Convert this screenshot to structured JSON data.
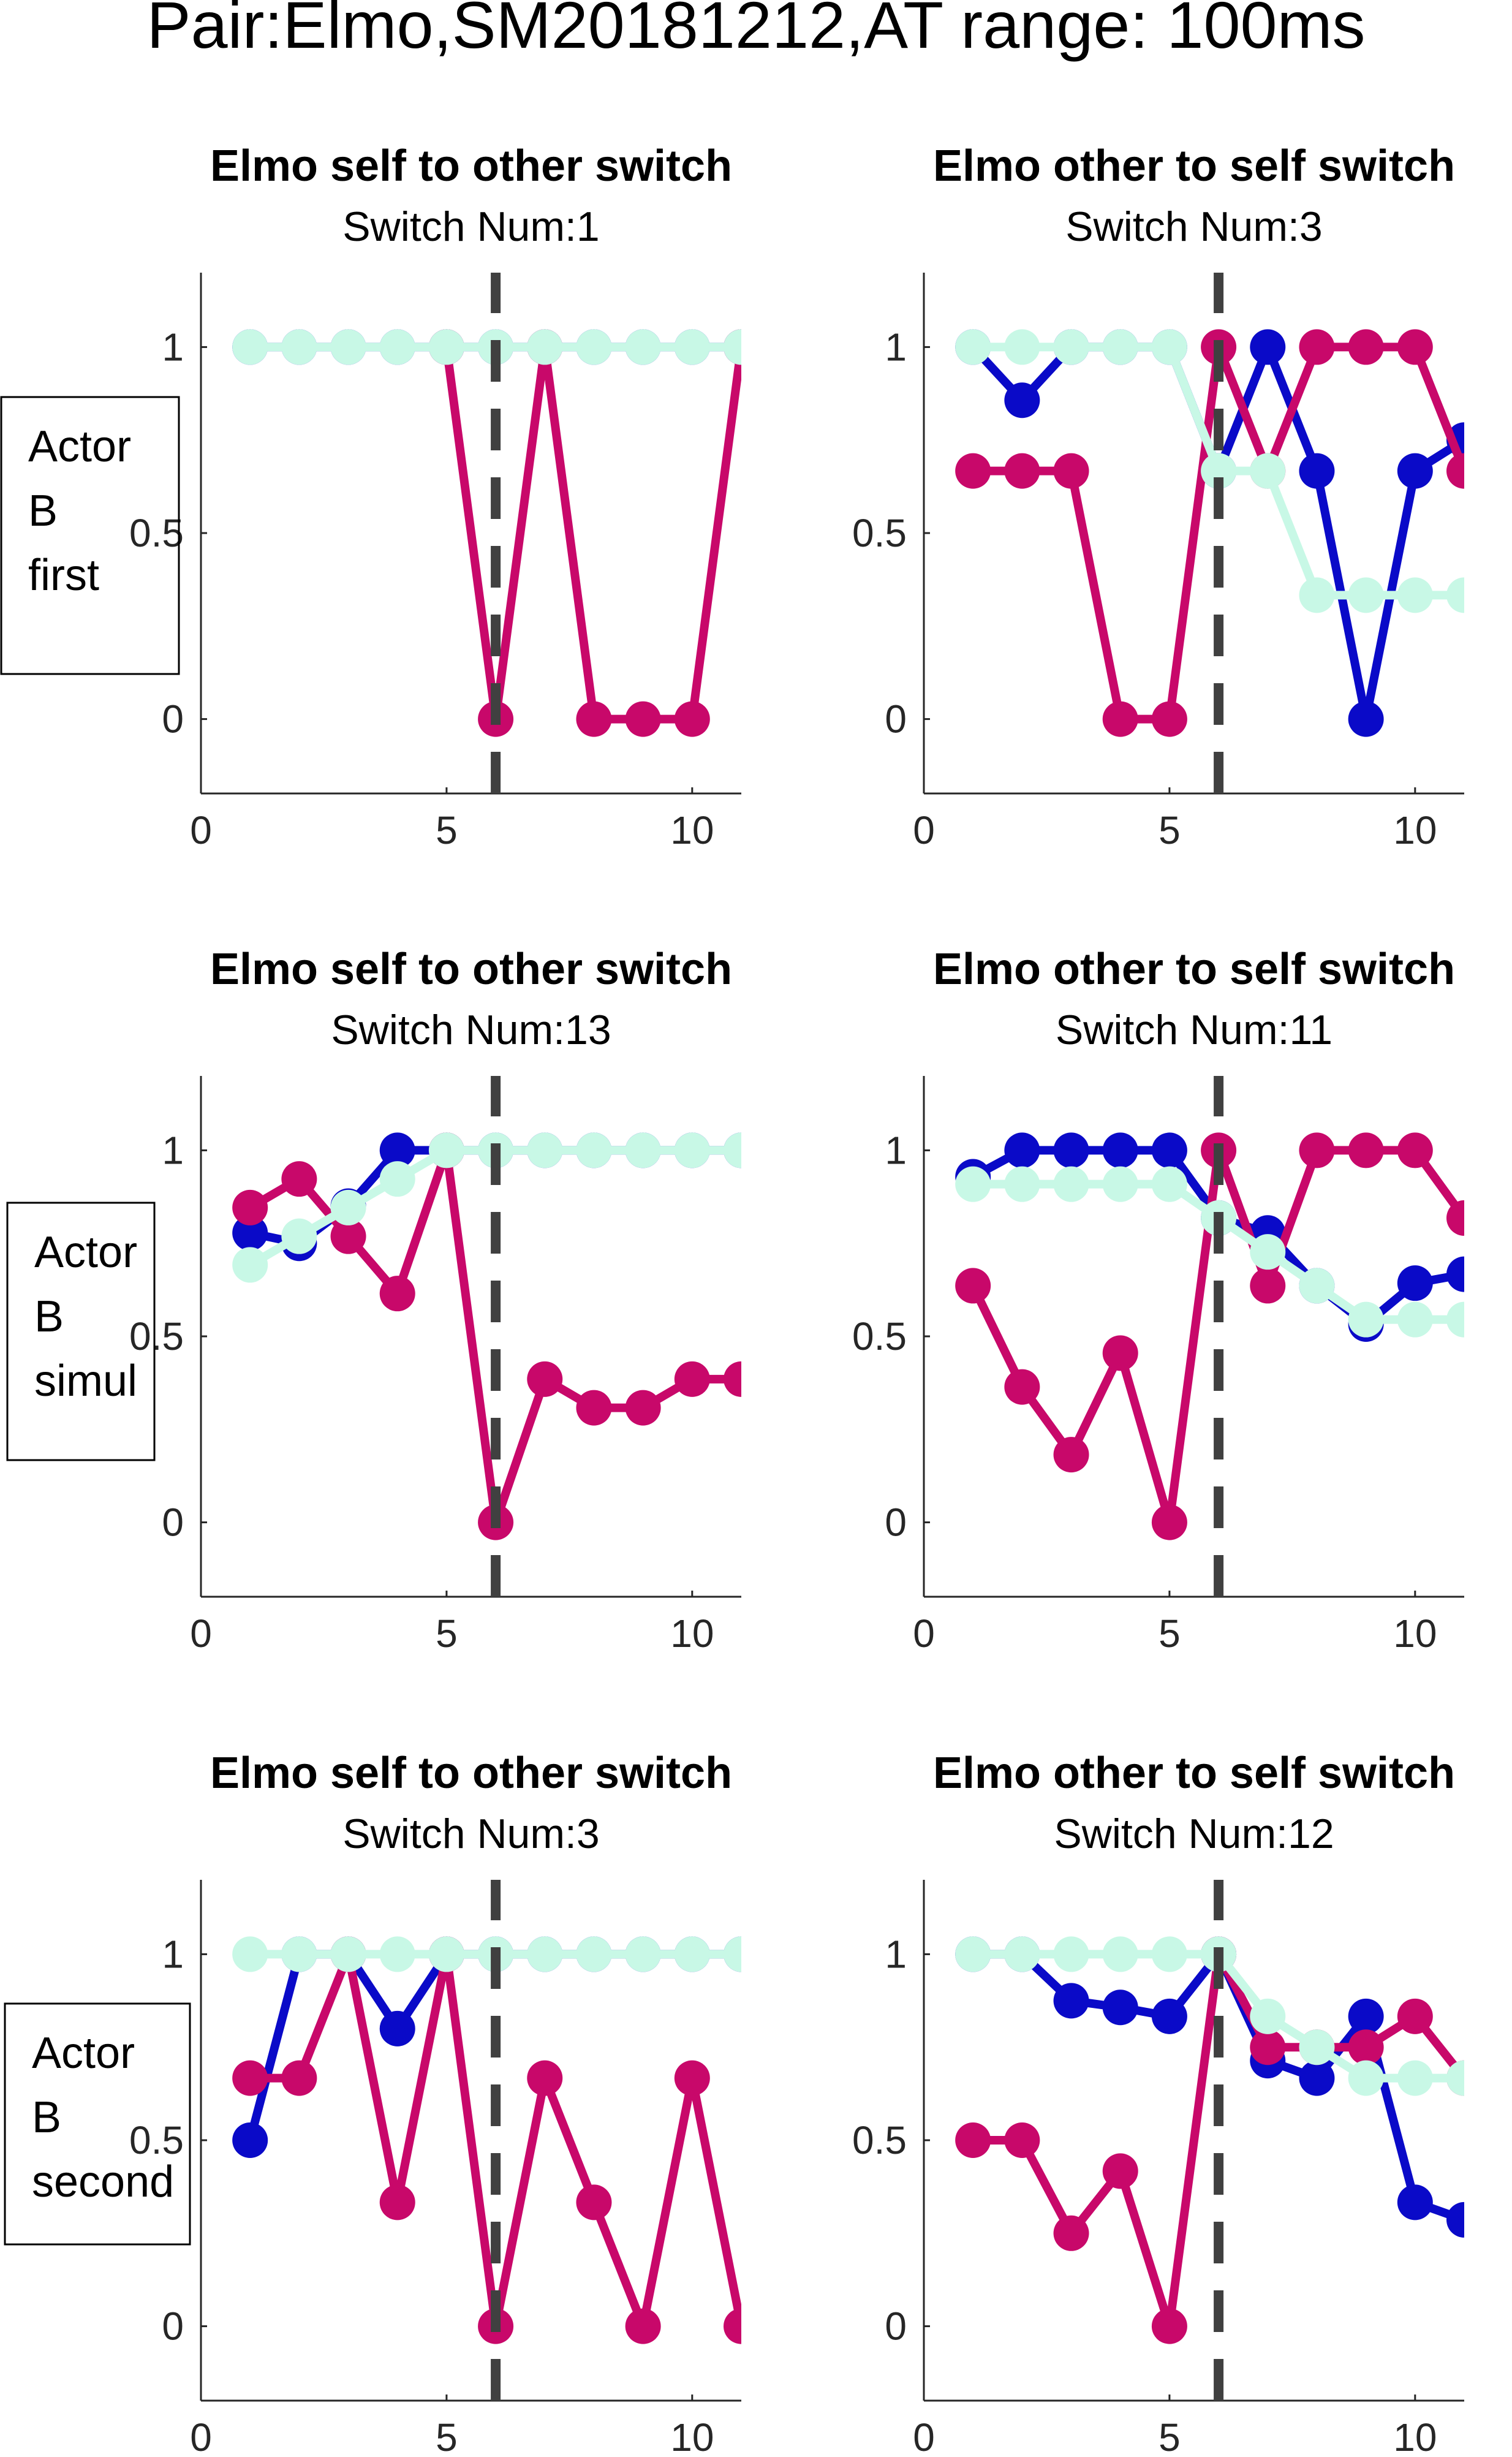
{
  "figure_title": "Pair:Elmo,SM20181212,AT range: 100ms",
  "row_labels": [
    [
      "Actor",
      "B",
      "first"
    ],
    [
      "Actor",
      "B",
      "simul"
    ],
    [
      "Actor",
      "B",
      "second"
    ]
  ],
  "colors": {
    "blue": "#0a0ac8",
    "magenta": "#c8086a",
    "mint": "#c8f8e6",
    "switch_line": "#404040",
    "axis": "#262626"
  },
  "chart_data": [
    {
      "type": "line",
      "title": "Elmo self to other switch",
      "subtitle": "Switch Num:1",
      "xlim": [
        0,
        11
      ],
      "ylim": [
        -0.2,
        1.2
      ],
      "xticks": [
        0,
        5,
        10
      ],
      "yticks": [
        0,
        0.5,
        1
      ],
      "switch_x": 6,
      "series": [
        {
          "color": "blue",
          "x": [
            1,
            2,
            3,
            4,
            5,
            6,
            7,
            8,
            9,
            10,
            11
          ],
          "values": [
            1,
            1,
            1,
            1,
            1,
            1,
            1,
            1,
            1,
            1,
            1
          ]
        },
        {
          "color": "magenta",
          "x": [
            5,
            6,
            7,
            8,
            9,
            10,
            11
          ],
          "values": [
            1,
            0,
            1,
            0,
            0,
            0,
            1
          ]
        },
        {
          "color": "mint",
          "x": [
            1,
            2,
            3,
            4,
            5,
            6,
            7,
            8,
            9,
            10,
            11
          ],
          "values": [
            1,
            1,
            1,
            1,
            1,
            1,
            1,
            1,
            1,
            1,
            1
          ]
        }
      ]
    },
    {
      "type": "line",
      "title": "Elmo other to self switch",
      "subtitle": "Switch Num:3",
      "xlim": [
        0,
        11
      ],
      "ylim": [
        -0.2,
        1.2
      ],
      "xticks": [
        0,
        5,
        10
      ],
      "yticks": [
        0,
        0.5,
        1
      ],
      "switch_x": 6,
      "series": [
        {
          "color": "blue",
          "x": [
            1,
            2,
            3,
            4,
            5,
            6,
            7,
            8,
            9,
            10,
            11
          ],
          "values": [
            1,
            0.857,
            1,
            1,
            1,
            0.667,
            1,
            0.667,
            0,
            0.667,
            0.75
          ]
        },
        {
          "color": "magenta",
          "x": [
            1,
            2,
            3,
            4,
            5,
            6,
            7,
            8,
            9,
            10,
            11
          ],
          "values": [
            0.667,
            0.667,
            0.667,
            0,
            0,
            1,
            0.667,
            1,
            1,
            1,
            0.667
          ]
        },
        {
          "color": "mint",
          "x": [
            1,
            2,
            3,
            4,
            5,
            6,
            7,
            8,
            9,
            10,
            11
          ],
          "values": [
            1,
            1,
            1,
            1,
            1,
            0.667,
            0.667,
            0.333,
            0.333,
            0.333,
            0.333
          ]
        }
      ]
    },
    {
      "type": "line",
      "title": "Elmo self to other switch",
      "subtitle": "Switch Num:13",
      "xlim": [
        0,
        11
      ],
      "ylim": [
        -0.2,
        1.2
      ],
      "xticks": [
        0,
        5,
        10
      ],
      "yticks": [
        0,
        0.5,
        1
      ],
      "switch_x": 6,
      "series": [
        {
          "color": "blue",
          "x": [
            1,
            2,
            3,
            4,
            5,
            6,
            7,
            8,
            9,
            10,
            11
          ],
          "values": [
            0.778,
            0.75,
            0.85,
            1,
            1,
            1,
            1,
            1,
            1,
            1,
            1
          ]
        },
        {
          "color": "magenta",
          "x": [
            1,
            2,
            3,
            4,
            5,
            6,
            7,
            8,
            9,
            10,
            11
          ],
          "values": [
            0.846,
            0.923,
            0.769,
            0.615,
            1,
            0,
            0.385,
            0.308,
            0.308,
            0.385,
            0.385
          ]
        },
        {
          "color": "mint",
          "x": [
            1,
            2,
            3,
            4,
            5,
            6,
            7,
            8,
            9,
            10,
            11
          ],
          "values": [
            0.692,
            0.769,
            0.846,
            0.923,
            1,
            1,
            1,
            1,
            1,
            1,
            1
          ]
        }
      ]
    },
    {
      "type": "line",
      "title": "Elmo other to self switch",
      "subtitle": "Switch Num:11",
      "xlim": [
        0,
        11
      ],
      "ylim": [
        -0.2,
        1.2
      ],
      "xticks": [
        0,
        5,
        10
      ],
      "yticks": [
        0,
        0.5,
        1
      ],
      "switch_x": 6,
      "series": [
        {
          "color": "blue",
          "x": [
            1,
            2,
            3,
            4,
            5,
            6,
            7,
            8,
            9,
            10,
            11
          ],
          "values": [
            0.929,
            1,
            1,
            1,
            1,
            0.818,
            0.778,
            0.636,
            0.533,
            0.643,
            0.667
          ]
        },
        {
          "color": "magenta",
          "x": [
            1,
            2,
            3,
            4,
            5,
            6,
            7,
            8,
            9,
            10,
            11
          ],
          "values": [
            0.636,
            0.364,
            0.182,
            0.455,
            0,
            1,
            0.636,
            1,
            1,
            1,
            0.818
          ]
        },
        {
          "color": "mint",
          "x": [
            1,
            2,
            3,
            4,
            5,
            6,
            7,
            8,
            9,
            10,
            11
          ],
          "values": [
            0.909,
            0.909,
            0.909,
            0.909,
            0.909,
            0.818,
            0.727,
            0.636,
            0.545,
            0.545,
            0.545
          ]
        }
      ]
    },
    {
      "type": "line",
      "title": "Elmo self to other switch",
      "subtitle": "Switch Num:3",
      "xlim": [
        0,
        11
      ],
      "ylim": [
        -0.2,
        1.2
      ],
      "xticks": [
        0,
        5,
        10
      ],
      "yticks": [
        0,
        0.5,
        1
      ],
      "switch_x": 6,
      "series": [
        {
          "color": "blue",
          "x": [
            1,
            2,
            3,
            4,
            5,
            6,
            7,
            8,
            9,
            10,
            11
          ],
          "values": [
            0.5,
            1,
            1,
            0.8,
            1,
            1,
            1,
            1,
            1,
            1,
            1
          ]
        },
        {
          "color": "magenta",
          "x": [
            1,
            2,
            3,
            4,
            5,
            6,
            7,
            8,
            9,
            10,
            11
          ],
          "values": [
            0.667,
            0.667,
            1,
            0.333,
            1,
            0,
            0.667,
            0.333,
            0,
            0.667,
            0
          ]
        },
        {
          "color": "mint",
          "x": [
            1,
            2,
            3,
            4,
            5,
            6,
            7,
            8,
            9,
            10,
            11
          ],
          "values": [
            1,
            1,
            1,
            1,
            1,
            1,
            1,
            1,
            1,
            1,
            1
          ]
        }
      ]
    },
    {
      "type": "line",
      "title": "Elmo other to self switch",
      "subtitle": "Switch Num:12",
      "xlim": [
        0,
        11
      ],
      "ylim": [
        -0.2,
        1.2
      ],
      "xticks": [
        0,
        5,
        10
      ],
      "yticks": [
        0,
        0.5,
        1
      ],
      "switch_x": 6,
      "series": [
        {
          "color": "blue",
          "x": [
            1,
            2,
            3,
            4,
            5,
            6,
            7,
            8,
            9,
            10,
            11
          ],
          "values": [
            1,
            1,
            0.875,
            0.857,
            0.833,
            1,
            0.714,
            0.667,
            0.833,
            0.333,
            0.286
          ]
        },
        {
          "color": "magenta",
          "x": [
            1,
            2,
            3,
            4,
            5,
            6,
            7,
            8,
            9,
            10,
            11
          ],
          "values": [
            0.5,
            0.5,
            0.25,
            0.417,
            0,
            1,
            0.75,
            0.75,
            0.75,
            0.833,
            0.667
          ]
        },
        {
          "color": "mint",
          "x": [
            1,
            2,
            3,
            4,
            5,
            6,
            7,
            8,
            9,
            10,
            11
          ],
          "values": [
            1,
            1,
            1,
            1,
            1,
            1,
            0.833,
            0.75,
            0.667,
            0.667,
            0.667
          ]
        }
      ]
    }
  ]
}
